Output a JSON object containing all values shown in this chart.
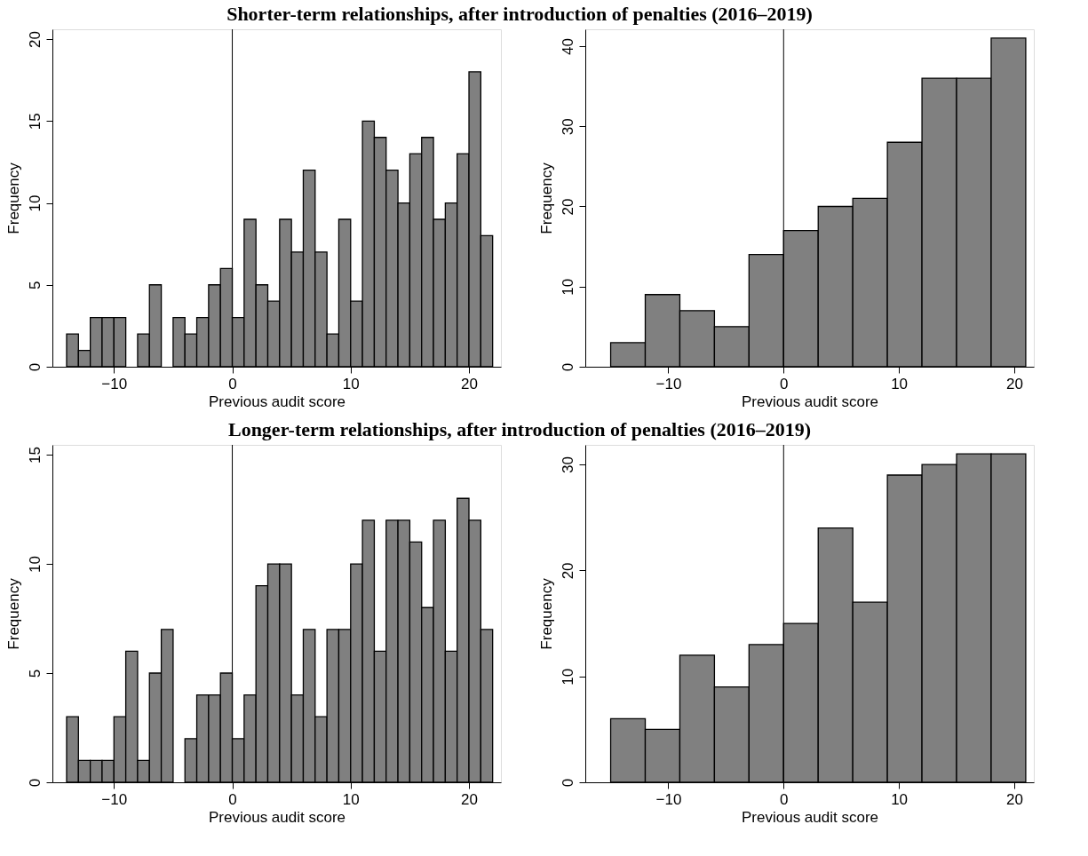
{
  "chart_data": [
    {
      "type": "histogram",
      "title": "Shorter-term relationships, after introduction of penalties (2016–2019)",
      "xlabel": "Previous audit score",
      "ylabel": "Frequency",
      "color": "#808080",
      "bins": [
        -14,
        -13,
        -12,
        -11,
        -10,
        -9,
        -8,
        -7,
        -6,
        -5,
        -4,
        -3,
        -2,
        -1,
        0,
        1,
        2,
        3,
        4,
        5,
        6,
        7,
        8,
        9,
        10,
        11,
        12,
        13,
        14,
        15,
        16,
        17,
        18,
        19,
        20,
        21,
        22
      ],
      "values": [
        2,
        1,
        3,
        3,
        3,
        0,
        2,
        5,
        0,
        3,
        2,
        3,
        5,
        6,
        3,
        9,
        5,
        4,
        9,
        7,
        12,
        7,
        2,
        9,
        4,
        15,
        14,
        12,
        10,
        13,
        14,
        9,
        10,
        13,
        18,
        8
      ],
      "xlim": [
        -15.2,
        22.7
      ],
      "ylim": [
        0,
        20.6
      ],
      "xticks": [
        -10,
        0,
        10,
        20
      ],
      "yticks": [
        0,
        5,
        10,
        15,
        20
      ],
      "ref_lines": [
        {
          "axis": "x",
          "value": 0
        }
      ]
    },
    {
      "type": "histogram",
      "xlabel": "Previous audit score",
      "ylabel": "Frequency",
      "color": "#808080",
      "bins": [
        -15,
        -12,
        -9,
        -6,
        -3,
        0,
        3,
        6,
        9,
        12,
        15,
        18,
        21
      ],
      "values": [
        3,
        9,
        7,
        5,
        14,
        17,
        20,
        21,
        28,
        36,
        36,
        41
      ],
      "xlim": [
        -17.2,
        21.7
      ],
      "ylim": [
        0,
        42.1
      ],
      "xticks": [
        -10,
        0,
        10,
        20
      ],
      "yticks": [
        0,
        10,
        20,
        30,
        40
      ],
      "ref_lines": [
        {
          "axis": "x",
          "value": 0
        }
      ]
    },
    {
      "type": "histogram",
      "title": "Longer-term relationships, after introduction of penalties (2016–2019)",
      "xlabel": "Previous audit score",
      "ylabel": "Frequency",
      "color": "#808080",
      "bins": [
        -14,
        -13,
        -12,
        -11,
        -10,
        -9,
        -8,
        -7,
        -6,
        -5,
        -4,
        -3,
        -2,
        -1,
        0,
        1,
        2,
        3,
        4,
        5,
        6,
        7,
        8,
        9,
        10,
        11,
        12,
        13,
        14,
        15,
        16,
        17,
        18,
        19,
        20,
        21,
        22
      ],
      "values": [
        3,
        1,
        1,
        1,
        3,
        6,
        1,
        5,
        7,
        0,
        2,
        4,
        4,
        5,
        2,
        4,
        9,
        10,
        10,
        4,
        7,
        3,
        7,
        7,
        10,
        12,
        6,
        12,
        12,
        11,
        8,
        12,
        6,
        13,
        12,
        7
      ],
      "xlim": [
        -15.2,
        22.7
      ],
      "ylim": [
        0,
        15.45
      ],
      "xticks": [
        -10,
        0,
        10,
        20
      ],
      "yticks": [
        0,
        5,
        10,
        15
      ],
      "ref_lines": [
        {
          "axis": "x",
          "value": 0
        }
      ]
    },
    {
      "type": "histogram",
      "xlabel": "Previous audit score",
      "ylabel": "Frequency",
      "color": "#808080",
      "bins": [
        -15,
        -12,
        -9,
        -6,
        -3,
        0,
        3,
        6,
        9,
        12,
        15,
        18,
        21
      ],
      "values": [
        6,
        5,
        12,
        9,
        13,
        15,
        24,
        17,
        29,
        30,
        31,
        31
      ],
      "xlim": [
        -17.2,
        21.7
      ],
      "ylim": [
        0,
        31.85
      ],
      "xticks": [
        -10,
        0,
        10,
        20
      ],
      "yticks": [
        0,
        10,
        20,
        30
      ],
      "ref_lines": [
        {
          "axis": "x",
          "value": 0
        }
      ]
    }
  ]
}
